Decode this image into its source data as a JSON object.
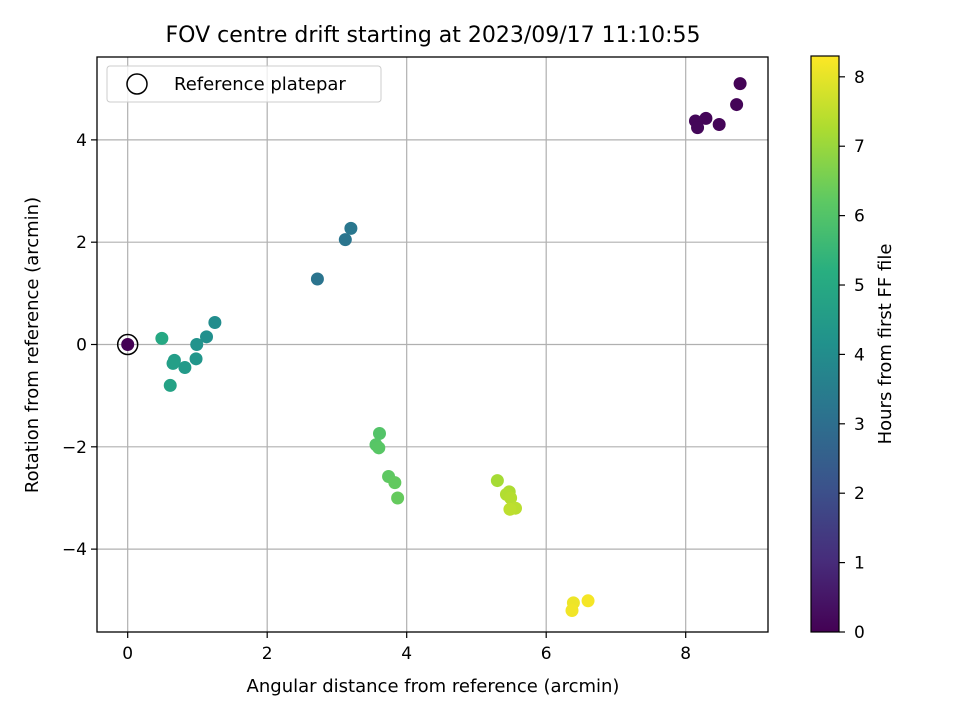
{
  "chart_data": {
    "type": "scatter",
    "title": "FOV centre drift starting at 2023/09/17 11:10:55",
    "xlabel": "Angular distance from reference (arcmin)",
    "ylabel": "Rotation from reference (arcmin)",
    "xlim": [
      -0.44,
      9.18
    ],
    "ylim": [
      -5.62,
      5.62
    ],
    "xticks": [
      0,
      2,
      4,
      6,
      8
    ],
    "yticks": [
      -4,
      -2,
      0,
      2,
      4
    ],
    "grid": true,
    "legend": {
      "placement": "top-left",
      "entries": [
        "Reference platepar"
      ]
    },
    "reference_point": {
      "x": 0,
      "y": 0
    },
    "colorbar": {
      "label": "Hours from first FF file",
      "colormap": "viridis",
      "range": [
        0,
        8.3
      ],
      "ticks": [
        0,
        1,
        2,
        3,
        4,
        5,
        6,
        7,
        8
      ]
    },
    "points": [
      {
        "x": 0.0,
        "y": 0.0,
        "c": 0.0
      },
      {
        "x": 8.78,
        "y": 5.1,
        "c": 0.05
      },
      {
        "x": 8.73,
        "y": 4.69,
        "c": 0.1
      },
      {
        "x": 8.48,
        "y": 4.3,
        "c": 0.1
      },
      {
        "x": 8.29,
        "y": 4.42,
        "c": 0.1
      },
      {
        "x": 8.14,
        "y": 4.37,
        "c": 0.15
      },
      {
        "x": 8.17,
        "y": 4.24,
        "c": 0.15
      },
      {
        "x": 2.72,
        "y": 1.28,
        "c": 3.2
      },
      {
        "x": 3.12,
        "y": 2.05,
        "c": 3.25
      },
      {
        "x": 3.2,
        "y": 2.27,
        "c": 3.3
      },
      {
        "x": 1.25,
        "y": 0.43,
        "c": 4.05
      },
      {
        "x": 1.13,
        "y": 0.15,
        "c": 4.15
      },
      {
        "x": 0.99,
        "y": 0.0,
        "c": 4.25
      },
      {
        "x": 0.98,
        "y": -0.28,
        "c": 4.35
      },
      {
        "x": 0.82,
        "y": -0.45,
        "c": 4.5
      },
      {
        "x": 0.67,
        "y": -0.31,
        "c": 4.6
      },
      {
        "x": 0.65,
        "y": -0.37,
        "c": 4.7
      },
      {
        "x": 0.61,
        "y": -0.8,
        "c": 4.8
      },
      {
        "x": 0.49,
        "y": 0.12,
        "c": 5.0
      },
      {
        "x": 3.61,
        "y": -1.74,
        "c": 6.05
      },
      {
        "x": 3.56,
        "y": -1.96,
        "c": 6.1
      },
      {
        "x": 3.6,
        "y": -2.02,
        "c": 6.15
      },
      {
        "x": 3.74,
        "y": -2.58,
        "c": 6.25
      },
      {
        "x": 3.83,
        "y": -2.7,
        "c": 6.3
      },
      {
        "x": 3.87,
        "y": -3.0,
        "c": 6.35
      },
      {
        "x": 5.3,
        "y": -2.66,
        "c": 7.2
      },
      {
        "x": 5.47,
        "y": -2.88,
        "c": 7.3
      },
      {
        "x": 5.43,
        "y": -2.93,
        "c": 7.35
      },
      {
        "x": 5.49,
        "y": -3.0,
        "c": 7.4
      },
      {
        "x": 5.56,
        "y": -3.2,
        "c": 7.45
      },
      {
        "x": 5.48,
        "y": -3.22,
        "c": 7.5
      },
      {
        "x": 6.39,
        "y": -5.05,
        "c": 8.1
      },
      {
        "x": 6.37,
        "y": -5.2,
        "c": 8.15
      },
      {
        "x": 6.6,
        "y": -5.01,
        "c": 8.2
      }
    ]
  }
}
